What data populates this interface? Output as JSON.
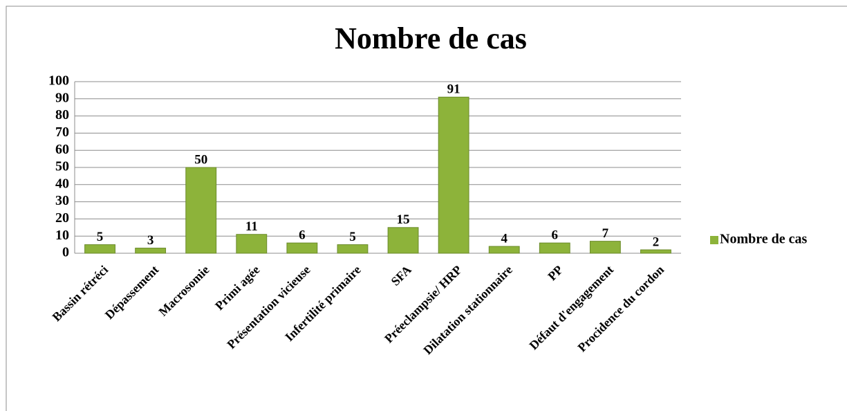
{
  "chart_data": {
    "type": "bar",
    "title": "Nombre de cas",
    "categories": [
      "Bassin rétréci",
      "Dépassement",
      "Macrosomie",
      "Primi agée",
      "Présentation vicieuse",
      "Infertilité primaire",
      "SFA",
      "Préeclampsie/ HRP",
      "Dilatation stationnaire",
      "PP",
      "Défaut d'engagement",
      "Procidence du cordon"
    ],
    "series": [
      {
        "name": "Nombre de cas",
        "color": "#8db33a",
        "values": [
          5,
          3,
          50,
          11,
          6,
          5,
          15,
          91,
          4,
          6,
          7,
          2
        ]
      }
    ],
    "ylim": [
      0,
      100
    ],
    "yticks": [
      0,
      10,
      20,
      30,
      40,
      50,
      60,
      70,
      80,
      90,
      100
    ],
    "grid": true,
    "legend": "right"
  }
}
